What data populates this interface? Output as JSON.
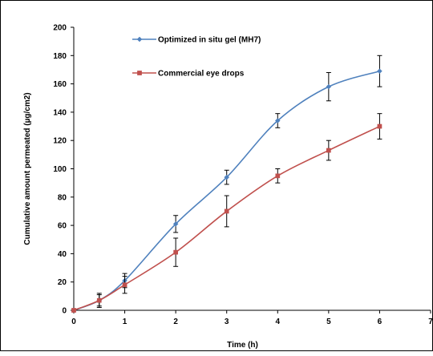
{
  "chart_data": {
    "type": "line",
    "title": "",
    "xlabel": "Time (h)",
    "ylabel": "Cumulative amount permeated (µg/cm2)",
    "xlim": [
      0,
      7
    ],
    "ylim": [
      0,
      200
    ],
    "xticks": [
      0,
      1,
      2,
      3,
      4,
      5,
      6,
      7
    ],
    "yticks": [
      0,
      20,
      40,
      60,
      80,
      100,
      120,
      140,
      160,
      180,
      200
    ],
    "grid": false,
    "legend_position": "top-center",
    "series": [
      {
        "name": "Optimized in situ gel (MH7)",
        "color": "#4F81BD",
        "marker": "diamond",
        "x": [
          0,
          0.5,
          1,
          2,
          3,
          4,
          5,
          6
        ],
        "y": [
          0,
          7,
          21,
          61,
          94,
          134,
          158,
          169
        ],
        "error": [
          0,
          4,
          5,
          6,
          5,
          5,
          10,
          11
        ]
      },
      {
        "name": "Commercial eye drops",
        "color": "#C0504D",
        "marker": "square",
        "x": [
          0,
          0.5,
          1,
          2,
          3,
          4,
          5,
          6
        ],
        "y": [
          0,
          7,
          18,
          41,
          70,
          95,
          113,
          130
        ],
        "error": [
          0,
          5,
          6,
          10,
          11,
          5,
          7,
          9
        ]
      }
    ]
  }
}
